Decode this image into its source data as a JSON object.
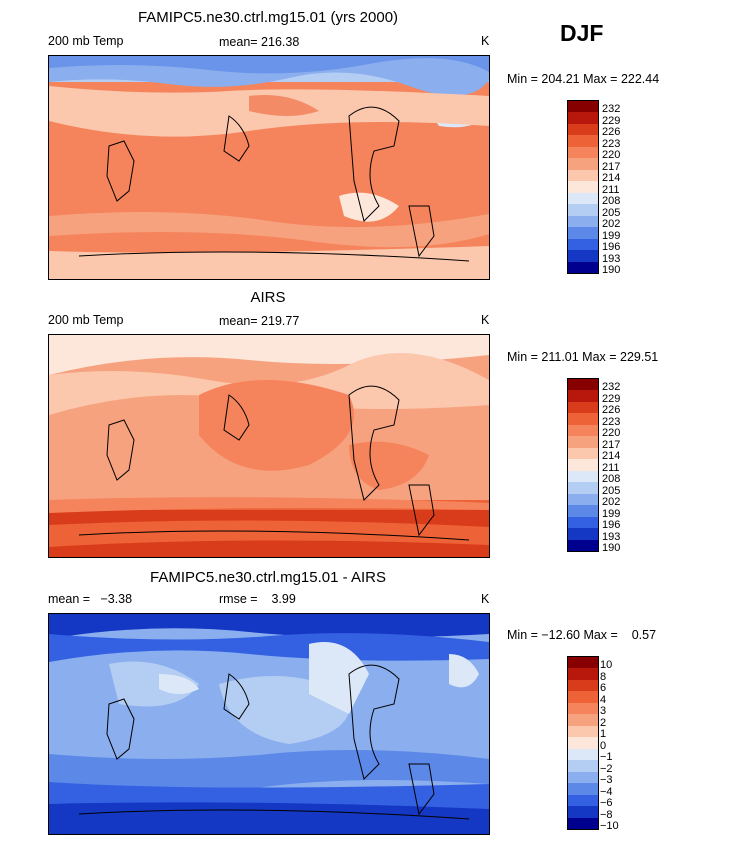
{
  "season": "DJF",
  "panels": [
    {
      "title": "FAMIPC5.ne30.ctrl.mg15.01 (yrs 2000)",
      "left_label": "200 mb Temp",
      "center_label": "mean= 216.38",
      "units": "K",
      "minmax": "Min = 204.21 Max = 222.44",
      "levels": [
        "232",
        "229",
        "226",
        "223",
        "220",
        "217",
        "214",
        "211",
        "208",
        "205",
        "202",
        "199",
        "196",
        "193",
        "190"
      ]
    },
    {
      "title": "AIRS",
      "left_label": "200 mb Temp",
      "center_label": "mean= 219.77",
      "units": "K",
      "minmax": "Min = 211.01 Max = 229.51",
      "levels": [
        "232",
        "229",
        "226",
        "223",
        "220",
        "217",
        "214",
        "211",
        "208",
        "205",
        "202",
        "199",
        "196",
        "193",
        "190"
      ]
    },
    {
      "title": "FAMIPC5.ne30.ctrl.mg15.01 - AIRS",
      "left_label": "mean =   −3.38",
      "center_label": "rmse =    3.99",
      "units": "K",
      "minmax": "Min = −12.60 Max =    0.57",
      "levels": [
        "10",
        "8",
        "6",
        "4",
        "3",
        "2",
        "1",
        "0",
        "−1",
        "−2",
        "−3",
        "−4",
        "−6",
        "−8",
        "−10"
      ]
    }
  ],
  "colorbar_colors": [
    "#870000",
    "#b8180c",
    "#d93c1a",
    "#ee6237",
    "#f5845c",
    "#f7a27f",
    "#fbc7ad",
    "#fde7da",
    "#dce8f8",
    "#b4cdf2",
    "#8aaeee",
    "#5c88e8",
    "#3461e2",
    "#1437c4",
    "#00008e"
  ]
}
